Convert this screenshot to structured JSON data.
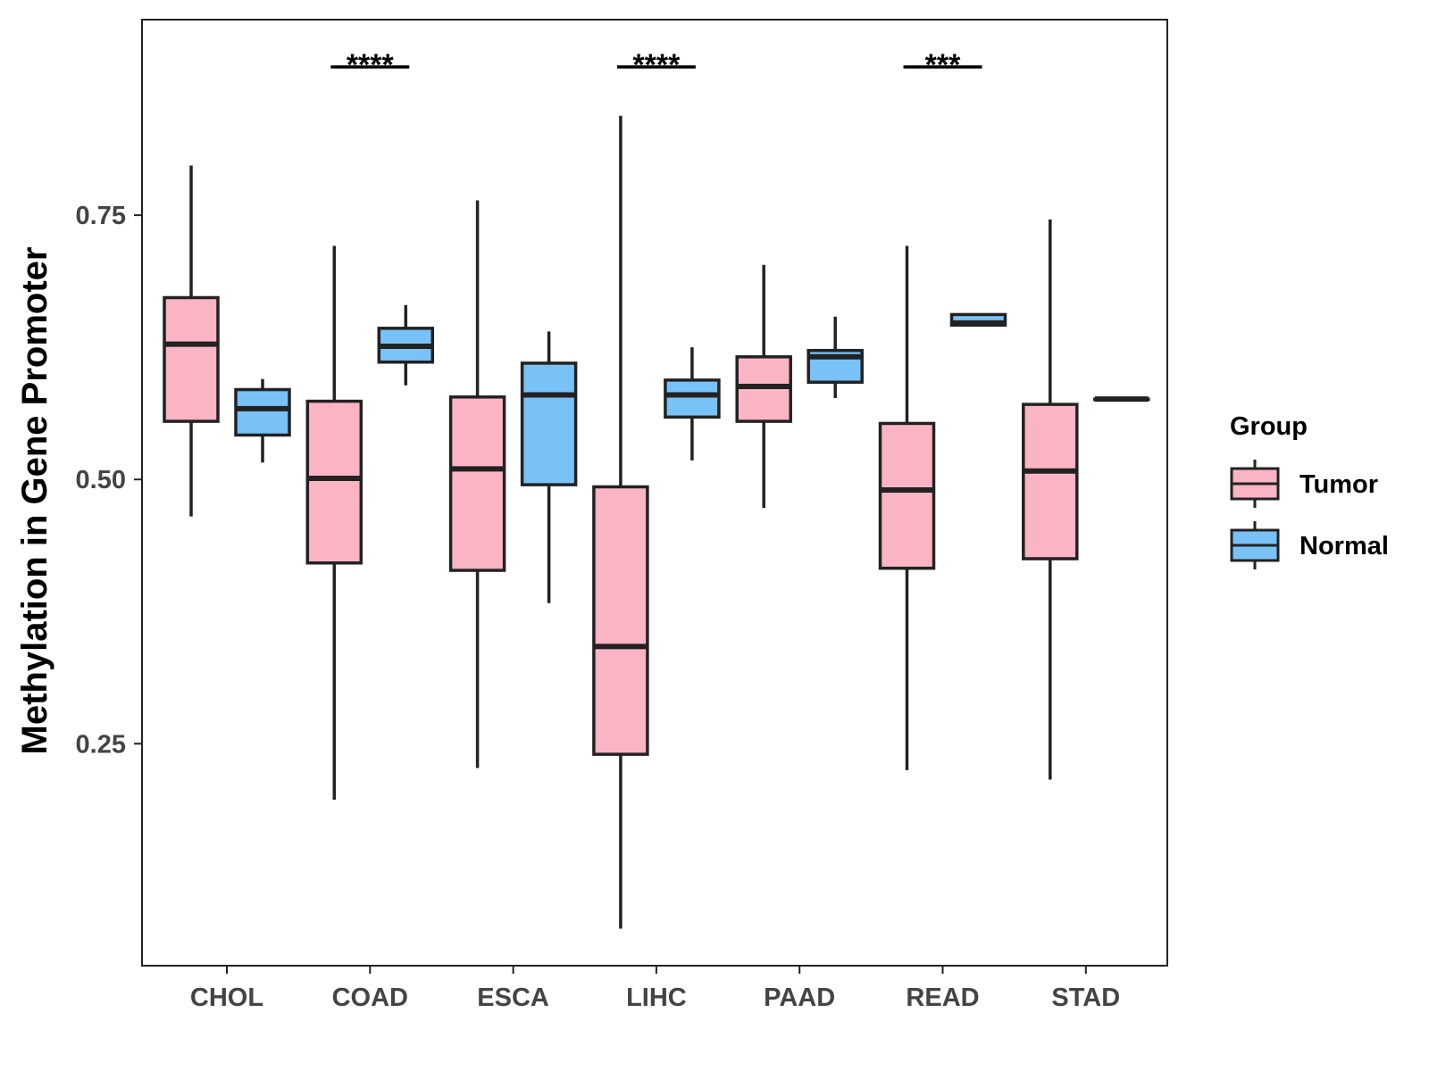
{
  "chart_data": {
    "type": "boxplot",
    "title": "",
    "xlabel": "",
    "ylabel": "Methylation in Gene Promoter",
    "ylim": [
      0.04,
      0.935
    ],
    "yticks": [
      0.25,
      0.5,
      0.75
    ],
    "ytick_labels": [
      "0.25",
      "0.50",
      "0.75"
    ],
    "categories": [
      "CHOL",
      "COAD",
      "ESCA",
      "LIHC",
      "PAAD",
      "READ",
      "STAD"
    ],
    "legend": {
      "title": "Group",
      "position": "right",
      "entries": [
        {
          "name": "Tumor",
          "color": "#FBB4C4"
        },
        {
          "name": "Normal",
          "color": "#78C2F8"
        }
      ]
    },
    "series": [
      {
        "name": "Tumor",
        "color": "#FBB4C4",
        "boxes": [
          {
            "min": 0.465,
            "q1": 0.555,
            "median": 0.628,
            "q3": 0.672,
            "max": 0.797
          },
          {
            "min": 0.197,
            "q1": 0.421,
            "median": 0.501,
            "q3": 0.574,
            "max": 0.721
          },
          {
            "min": 0.227,
            "q1": 0.414,
            "median": 0.51,
            "q3": 0.578,
            "max": 0.764
          },
          {
            "min": 0.075,
            "q1": 0.24,
            "median": 0.342,
            "q3": 0.493,
            "max": 0.844
          },
          {
            "min": 0.473,
            "q1": 0.555,
            "median": 0.588,
            "q3": 0.616,
            "max": 0.703
          },
          {
            "min": 0.225,
            "q1": 0.416,
            "median": 0.49,
            "q3": 0.553,
            "max": 0.721
          },
          {
            "min": 0.216,
            "q1": 0.425,
            "median": 0.508,
            "q3": 0.571,
            "max": 0.746
          }
        ]
      },
      {
        "name": "Normal",
        "color": "#78C2F8",
        "boxes": [
          {
            "min": 0.516,
            "q1": 0.542,
            "median": 0.567,
            "q3": 0.585,
            "max": 0.595
          },
          {
            "min": 0.589,
            "q1": 0.611,
            "median": 0.626,
            "q3": 0.643,
            "max": 0.665
          },
          {
            "min": 0.383,
            "q1": 0.495,
            "median": 0.58,
            "q3": 0.61,
            "max": 0.64
          },
          {
            "min": 0.518,
            "q1": 0.559,
            "median": 0.58,
            "q3": 0.594,
            "max": 0.625
          },
          {
            "min": 0.577,
            "q1": 0.592,
            "median": 0.616,
            "q3": 0.622,
            "max": 0.654
          },
          {
            "min": 0.645,
            "q1": 0.646,
            "median": 0.648,
            "q3": 0.656,
            "max": 0.657
          },
          {
            "min": 0.576,
            "q1": 0.576,
            "median": 0.576,
            "q3": 0.576,
            "max": 0.576
          }
        ]
      }
    ],
    "annotations": [
      {
        "category": "COAD",
        "label": "****"
      },
      {
        "category": "LIHC",
        "label": "****"
      },
      {
        "category": "READ",
        "label": "***"
      }
    ]
  }
}
